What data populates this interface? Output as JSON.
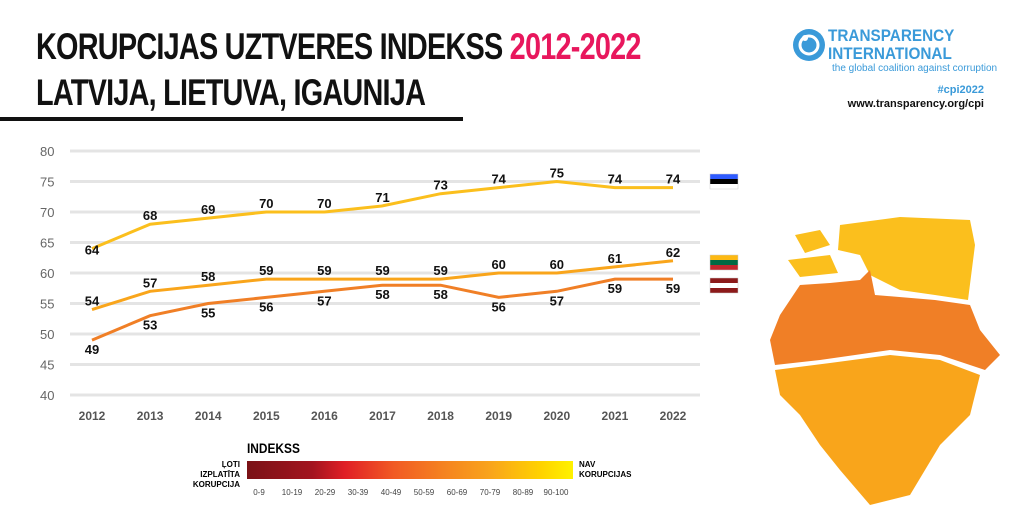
{
  "header": {
    "title_line1": "KORUPCIJAS UZTVERES INDEKSS ",
    "title_years": "2012-2022",
    "title_line2": "LATVIJA, LIETUVA, IGAUNIJA"
  },
  "branding": {
    "logo_line1": "TRANSPARENCY",
    "logo_line2": "INTERNATIONAL",
    "tagline": "the global coalition against corruption",
    "hashtag": "#cpi2022",
    "url": "www.transparency.org/cpi"
  },
  "legend": {
    "title": "INDEKSS",
    "left_label": "ĻOTI IZPLATĪTA KORUPCIJA",
    "right_label": "NAV KORUPCIJAS",
    "ranges": [
      "0-9",
      "10-19",
      "20-29",
      "30-39",
      "40-49",
      "50-59",
      "60-69",
      "70-79",
      "80-89",
      "90-100"
    ]
  },
  "colors": {
    "estonia": "#fbbf1d",
    "lithuania": "#f9a51b",
    "latvia": "#f07f26",
    "accent": "#e8175d"
  },
  "chart_data": {
    "type": "line",
    "title": "KORUPCIJAS UZTVERES INDEKSS 2012-2022",
    "x": [
      "2012",
      "2013",
      "2014",
      "2015",
      "2016",
      "2017",
      "2018",
      "2019",
      "2020",
      "2021",
      "2022"
    ],
    "ylim": [
      40,
      80
    ],
    "yticks": [
      40,
      45,
      50,
      55,
      60,
      65,
      70,
      75,
      80
    ],
    "grid": true,
    "series": [
      {
        "name": "Igaunija",
        "flag": "estonia",
        "values": [
          64,
          68,
          69,
          70,
          70,
          71,
          73,
          74,
          75,
          74,
          74
        ]
      },
      {
        "name": "Lietuva",
        "flag": "lithuania",
        "values": [
          54,
          57,
          58,
          59,
          59,
          59,
          59,
          60,
          60,
          61,
          62
        ]
      },
      {
        "name": "Latvija",
        "flag": "latvia",
        "values": [
          49,
          53,
          55,
          56,
          57,
          58,
          58,
          56,
          57,
          59,
          59
        ]
      }
    ]
  }
}
